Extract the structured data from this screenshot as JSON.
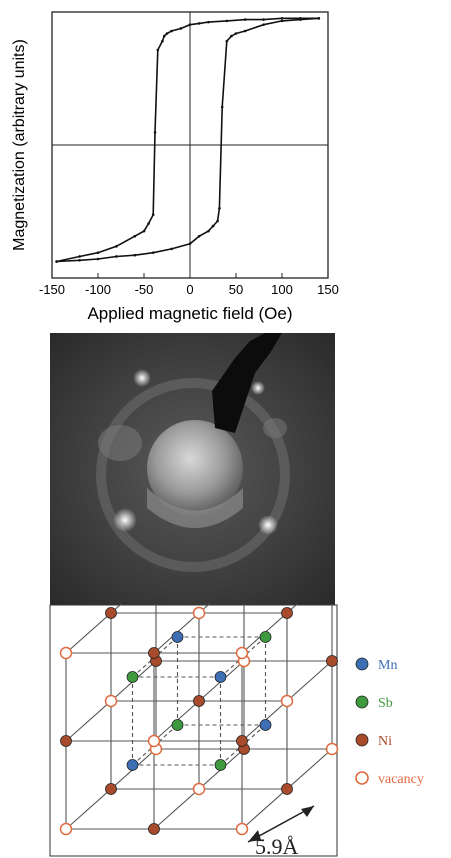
{
  "chart_data": {
    "type": "line",
    "title": "",
    "xlabel": "Applied magnetic field (Oe)",
    "ylabel": "Magnetization (arbitrary units)",
    "xlim": [
      -150,
      150
    ],
    "ylim": [
      -1.05,
      1.05
    ],
    "xticks": [
      -150,
      -100,
      -50,
      0,
      50,
      100,
      150
    ],
    "grid": false,
    "series": [
      {
        "x": [
          -145,
          -120,
          -100,
          -80,
          -60,
          -50,
          -45,
          -40,
          -38,
          -35,
          -30,
          -28,
          -25,
          -20,
          -10,
          0,
          10,
          20,
          40,
          60,
          80,
          100,
          120,
          140
        ],
        "y": [
          -0.92,
          -0.88,
          -0.85,
          -0.8,
          -0.72,
          -0.68,
          -0.62,
          -0.55,
          0.1,
          0.75,
          0.82,
          0.86,
          0.88,
          0.9,
          0.92,
          0.95,
          0.96,
          0.97,
          0.98,
          0.99,
          0.99,
          1.0,
          1.0,
          1.0
        ]
      },
      {
        "x": [
          140,
          120,
          100,
          80,
          60,
          50,
          45,
          40,
          35,
          32,
          30,
          25,
          20,
          10,
          0,
          -20,
          -40,
          -60,
          -80,
          -100,
          -120,
          -145
        ],
        "y": [
          1.0,
          0.99,
          0.98,
          0.95,
          0.9,
          0.88,
          0.86,
          0.82,
          0.3,
          -0.5,
          -0.6,
          -0.64,
          -0.68,
          -0.72,
          -0.78,
          -0.82,
          -0.85,
          -0.87,
          -0.88,
          -0.9,
          -0.91,
          -0.92
        ]
      }
    ]
  },
  "lattice": {
    "legend": [
      {
        "label": "Mn",
        "color": "#3e6fb5",
        "type": "filled"
      },
      {
        "label": "Sb",
        "color": "#3f9a3f",
        "type": "filled"
      },
      {
        "label": "Ni",
        "color": "#a84a2c",
        "type": "filled"
      },
      {
        "label": "vacancy",
        "color": "#e06a40",
        "type": "open"
      }
    ],
    "dimension_label": "5.9Å"
  }
}
